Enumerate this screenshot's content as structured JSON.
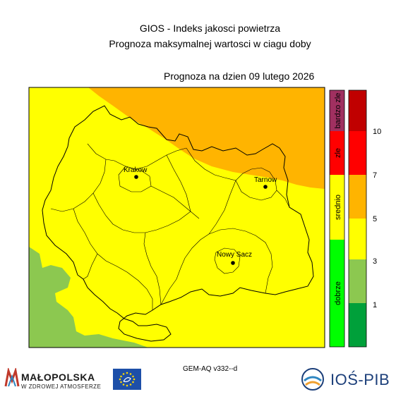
{
  "title_line1": "GIOS - Indeks jakosci powietrza",
  "title_line2": "Prognoza maksymalnej wartosci w ciagu doby",
  "forecast_date": "Prognoza na dzien  09 lutego 2026",
  "cities": [
    {
      "name": "Krakow"
    },
    {
      "name": "Tarnow"
    },
    {
      "name": "Nowy Sacz"
    }
  ],
  "category_legend": [
    {
      "label": "bardzo zle",
      "color": "#a03060"
    },
    {
      "label": "zle",
      "color": "#ff0000"
    },
    {
      "label": "srednio",
      "color": "#ffff00"
    },
    {
      "label": "dobrze",
      "color": "#00ff00"
    }
  ],
  "value_scale": {
    "colors": [
      "#00a03a",
      "#8cc850",
      "#ffff00",
      "#ffb400",
      "#ff0000",
      "#c00000"
    ],
    "labels": [
      "1",
      "3",
      "5",
      "7",
      "10"
    ]
  },
  "model_label": "GEM-AQ v332--d",
  "logos": {
    "malopolska_name": "MAŁOPOLSKA",
    "malopolska_tagline": "W ZDROWEJ ATMOSFERZE",
    "institute": "IOŚ-PIB"
  }
}
